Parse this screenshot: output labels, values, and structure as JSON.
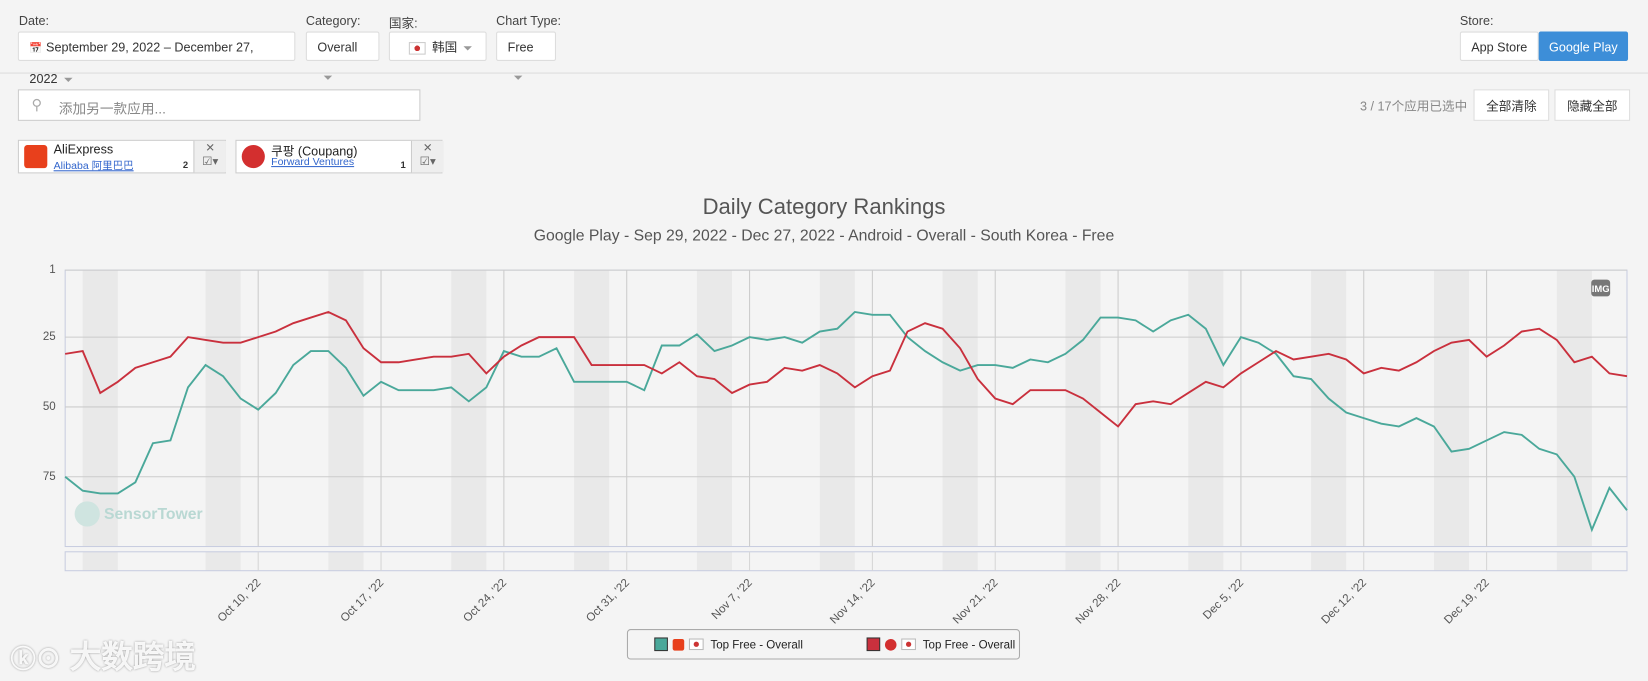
{
  "filters": {
    "date_label": "Date:",
    "date": "September 29, 2022 – December 27, 2022",
    "category_label": "Category:",
    "category": "Overall",
    "country_label": "国家:",
    "country": "韩国",
    "chart_type_label": "Chart Type:",
    "chart_type": "Free",
    "store_label": "Store:",
    "stores": [
      "App Store",
      "Google Play"
    ]
  },
  "search_placeholder": "添加另一款应用...",
  "selection": {
    "count": "3 / 17个应用已选中",
    "clear_all": "全部清除",
    "hide_all": "隐藏全部"
  },
  "apps": [
    {
      "name": "AliExpress",
      "publisher": "Alibaba 阿里巴巴",
      "count": 2
    },
    {
      "name": "쿠팡 (Coupang)",
      "publisher": "Forward Ventures",
      "count": 1
    }
  ],
  "chart_data": {
    "type": "line",
    "title": "Daily Category Rankings",
    "subtitle": "Google Play - Sep 29, 2022 - Dec 27, 2022 - Android - Overall - South Korea - Free",
    "x": [
      "2022-09-29",
      "2022-09-30",
      "2022-10-01",
      "2022-10-02",
      "2022-10-03",
      "2022-10-04",
      "2022-10-05",
      "2022-10-06",
      "2022-10-07",
      "2022-10-08",
      "2022-10-09",
      "2022-10-10",
      "2022-10-11",
      "2022-10-12",
      "2022-10-13",
      "2022-10-14",
      "2022-10-15",
      "2022-10-16",
      "2022-10-17",
      "2022-10-18",
      "2022-10-19",
      "2022-10-20",
      "2022-10-21",
      "2022-10-22",
      "2022-10-23",
      "2022-10-24",
      "2022-10-25",
      "2022-10-26",
      "2022-10-27",
      "2022-10-28",
      "2022-10-29",
      "2022-10-30",
      "2022-10-31",
      "2022-11-01",
      "2022-11-02",
      "2022-11-03",
      "2022-11-04",
      "2022-11-05",
      "2022-11-06",
      "2022-11-07",
      "2022-11-08",
      "2022-11-09",
      "2022-11-10",
      "2022-11-11",
      "2022-11-12",
      "2022-11-13",
      "2022-11-14",
      "2022-11-15",
      "2022-11-16",
      "2022-11-17",
      "2022-11-18",
      "2022-11-19",
      "2022-11-20",
      "2022-11-21",
      "2022-11-22",
      "2022-11-23",
      "2022-11-24",
      "2022-11-25",
      "2022-11-26",
      "2022-11-27",
      "2022-11-28",
      "2022-11-29",
      "2022-11-30",
      "2022-12-01",
      "2022-12-02",
      "2022-12-03",
      "2022-12-04",
      "2022-12-05",
      "2022-12-06",
      "2022-12-07",
      "2022-12-08",
      "2022-12-09",
      "2022-12-10",
      "2022-12-11",
      "2022-12-12",
      "2022-12-13",
      "2022-12-14",
      "2022-12-15",
      "2022-12-16",
      "2022-12-17",
      "2022-12-18",
      "2022-12-19",
      "2022-12-20",
      "2022-12-21",
      "2022-12-22",
      "2022-12-23",
      "2022-12-24",
      "2022-12-25",
      "2022-12-26",
      "2022-12-27"
    ],
    "series": [
      {
        "name": "Top Free - Overall",
        "color": "#4aa89a",
        "values": [
          75,
          80,
          81,
          81,
          77,
          63,
          62,
          43,
          35,
          39,
          47,
          51,
          45,
          35,
          30,
          30,
          36,
          46,
          41,
          44,
          44,
          44,
          43,
          48,
          43,
          30,
          32,
          32,
          29,
          41,
          41,
          41,
          41,
          44,
          28,
          28,
          24,
          30,
          28,
          25,
          26,
          25,
          27,
          23,
          22,
          16,
          17,
          17,
          25,
          30,
          34,
          37,
          35,
          35,
          36,
          33,
          34,
          31,
          26,
          18,
          18,
          19,
          23,
          19,
          17,
          22,
          35,
          25,
          27,
          31,
          39,
          40,
          47,
          52,
          54,
          56,
          57,
          54,
          57,
          66,
          65,
          62,
          59,
          60,
          65,
          67,
          75,
          94,
          79,
          87
        ]
      },
      {
        "name": "Top Free - Overall",
        "color": "#c9303d",
        "values": [
          31,
          30,
          45,
          41,
          36,
          34,
          32,
          25,
          26,
          27,
          27,
          25,
          23,
          20,
          18,
          16,
          19,
          29,
          34,
          34,
          33,
          32,
          32,
          31,
          38,
          32,
          28,
          25,
          25,
          25,
          35,
          35,
          35,
          35,
          38,
          34,
          39,
          40,
          45,
          42,
          41,
          36,
          37,
          35,
          38,
          43,
          39,
          37,
          23,
          20,
          22,
          29,
          40,
          47,
          49,
          44,
          44,
          44,
          47,
          52,
          57,
          49,
          48,
          49,
          45,
          41,
          43,
          38,
          34,
          30,
          33,
          32,
          31,
          33,
          38,
          36,
          37,
          34,
          30,
          27,
          26,
          32,
          28,
          23,
          22,
          26,
          34,
          32,
          38,
          39
        ]
      }
    ],
    "ylim": [
      1,
      100
    ],
    "y_reversed": true,
    "yticks": [
      1,
      25,
      50,
      75
    ],
    "grid": true,
    "xticks": [
      {
        "value": "2022-10-10",
        "label": "Oct 10, '22"
      },
      {
        "value": "2022-10-17",
        "label": "Oct 17, '22"
      },
      {
        "value": "2022-10-24",
        "label": "Oct 24, '22"
      },
      {
        "value": "2022-10-31",
        "label": "Oct 31, '22"
      },
      {
        "value": "2022-11-07",
        "label": "Nov 7, '22"
      },
      {
        "value": "2022-11-14",
        "label": "Nov 14, '22"
      },
      {
        "value": "2022-11-21",
        "label": "Nov 21, '22"
      },
      {
        "value": "2022-11-28",
        "label": "Nov 28, '22"
      },
      {
        "value": "2022-12-05",
        "label": "Dec 5, '22"
      },
      {
        "value": "2022-12-12",
        "label": "Dec 12, '22"
      },
      {
        "value": "2022-12-19",
        "label": "Dec 19, '22"
      }
    ],
    "watermark": "SensorTower",
    "badge": "IMG"
  },
  "footer_watermark": "大数跨境"
}
